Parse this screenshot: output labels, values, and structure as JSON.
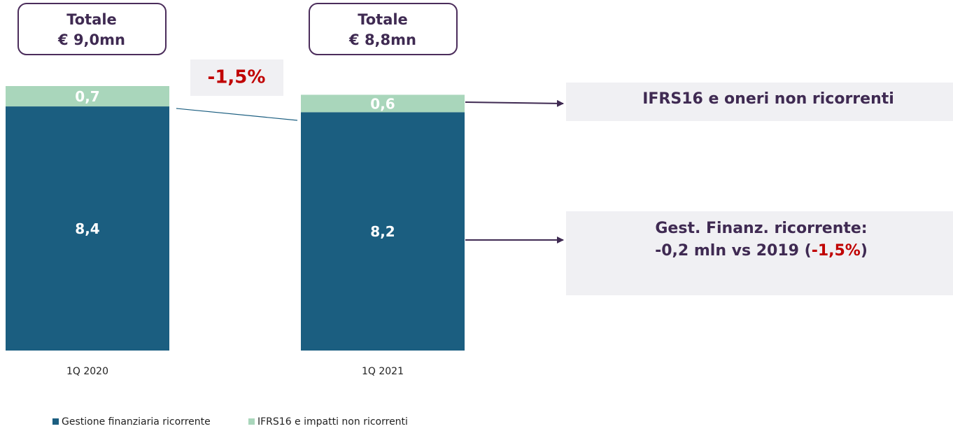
{
  "chart_data": {
    "type": "bar",
    "stacked": true,
    "categories": [
      "1Q 2020",
      "1Q 2021"
    ],
    "series": [
      {
        "name": "Gestione finanziaria ricorrente",
        "color": "#1b5e80",
        "values": [
          8.4,
          8.2
        ],
        "value_labels": [
          "8,4",
          "8,2"
        ]
      },
      {
        "name": "IFRS16 e impatti non ricorrenti",
        "color": "#a9d6bb",
        "values": [
          0.7,
          0.6
        ],
        "value_labels": [
          "0,7",
          "0,6"
        ]
      }
    ],
    "totals": [
      {
        "title": "Totale",
        "amount": "€ 9,0mn"
      },
      {
        "title": "Totale",
        "amount": "€ 8,8mn"
      }
    ],
    "change_label": "-1,5%",
    "notes": [
      {
        "lines": [
          [
            "IFRS16 e oneri non ricorrenti"
          ]
        ]
      },
      {
        "lines": [
          [
            "Gest. Finanz. ricorrente:"
          ],
          [
            "-0,2 mln vs 2019 (",
            "-1,5%",
            ")"
          ]
        ]
      }
    ]
  }
}
